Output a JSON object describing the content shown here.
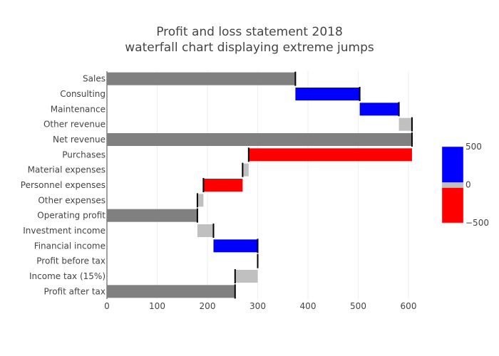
{
  "chart_data": {
    "type": "bar",
    "orientation": "horizontal",
    "subtype": "waterfall",
    "title_lines": [
      "Profit and loss statement 2018",
      "waterfall chart displaying extreme jumps"
    ],
    "xlim": [
      0,
      610
    ],
    "x_ticks": [
      0,
      100,
      200,
      300,
      400,
      500,
      600
    ],
    "grid": "vertical gridlines",
    "bars": [
      {
        "label": "Sales",
        "start": 0,
        "end": 375,
        "kind": "total"
      },
      {
        "label": "Consulting",
        "start": 375,
        "end": 503,
        "kind": "increase"
      },
      {
        "label": "Maintenance",
        "start": 503,
        "end": 581,
        "kind": "increase"
      },
      {
        "label": "Other revenue",
        "start": 581,
        "end": 607,
        "kind": "small"
      },
      {
        "label": "Net revenue",
        "start": 0,
        "end": 607,
        "kind": "total"
      },
      {
        "label": "Purchases",
        "start": 607,
        "end": 282,
        "kind": "decrease"
      },
      {
        "label": "Material expenses",
        "start": 282,
        "end": 270,
        "kind": "small"
      },
      {
        "label": "Personnel expenses",
        "start": 270,
        "end": 192,
        "kind": "decrease"
      },
      {
        "label": "Other expenses",
        "start": 192,
        "end": 180,
        "kind": "small"
      },
      {
        "label": "Operating profit",
        "start": 0,
        "end": 180,
        "kind": "total"
      },
      {
        "label": "Investment income",
        "start": 180,
        "end": 212,
        "kind": "small"
      },
      {
        "label": "Financial income",
        "start": 212,
        "end": 300,
        "kind": "increase"
      },
      {
        "label": "Profit before tax",
        "start": 300,
        "end": 300,
        "kind": "total-marker"
      },
      {
        "label": "Income tax (15%)",
        "start": 300,
        "end": 255,
        "kind": "small"
      },
      {
        "label": "Profit after tax",
        "start": 0,
        "end": 255,
        "kind": "total"
      }
    ],
    "colorscale": {
      "ticks": [
        500,
        0,
        -500
      ],
      "tick_labels": [
        "500",
        "0",
        "−500"
      ],
      "bands": [
        "increase",
        "small",
        "decrease"
      ]
    },
    "colors": {
      "total": "#808080",
      "increase": "#0000ff",
      "decrease": "#ff0000",
      "small": "#c0c0c0",
      "connector": "#000000",
      "grid": "#eeeeee",
      "axis": "#444444"
    }
  }
}
